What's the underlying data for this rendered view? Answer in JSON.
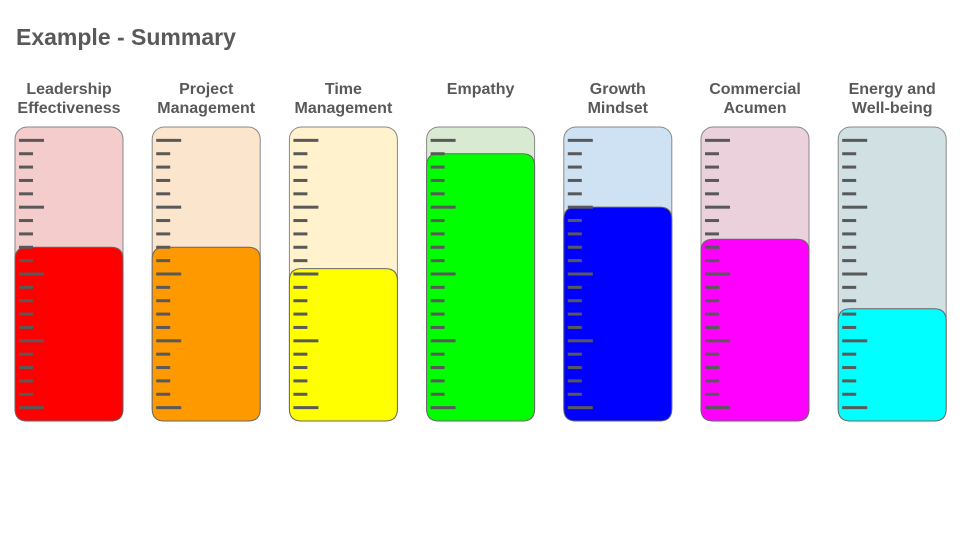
{
  "chart_data": {
    "type": "gauge",
    "title": "Example - Summary",
    "categories": [
      "Leadership Effectiveness",
      "Project Management",
      "Time Management",
      "Empathy",
      "Growth Mindset",
      "Commercial Acumen",
      "Energy and Well-being"
    ],
    "values": [
      60,
      60,
      52,
      95,
      75,
      63,
      37
    ],
    "colors": [
      "#ff0000",
      "#ff9900",
      "#ffff00",
      "#00ff00",
      "#0000ff",
      "#ff00ff",
      "#00ffff"
    ],
    "background_colors": [
      "#f4cccc",
      "#fce5cd",
      "#fff2cc",
      "#d9ead3",
      "#cfe2f3",
      "#ead1dc",
      "#d0e0e3"
    ],
    "ylim": [
      -5,
      105
    ],
    "yticks": [
      0,
      5,
      10,
      15,
      20,
      25,
      30,
      35,
      40,
      45,
      50,
      55,
      60,
      65,
      70,
      75,
      80,
      85,
      90,
      95,
      100
    ]
  }
}
